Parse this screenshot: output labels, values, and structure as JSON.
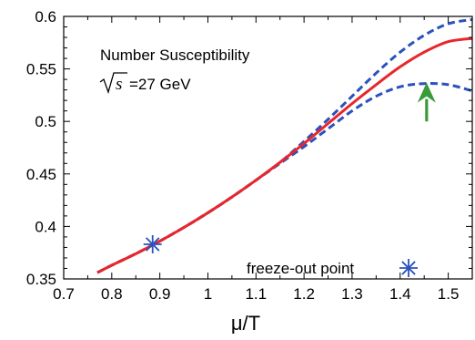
{
  "chart_data": {
    "type": "line",
    "title": "",
    "xlabel": "μ/T",
    "ylabel": "",
    "xlim": [
      0.7,
      1.55
    ],
    "ylim": [
      0.35,
      0.6
    ],
    "x_ticks": [
      0.7,
      0.8,
      0.9,
      1.0,
      1.1,
      1.2,
      1.3,
      1.4,
      1.5
    ],
    "x_tick_labels": [
      "0.7",
      "0.8",
      "0.9",
      "1",
      "1.1",
      "1.2",
      "1.3",
      "1.4",
      "1.5"
    ],
    "y_ticks": [
      0.35,
      0.4,
      0.45,
      0.5,
      0.55,
      0.6
    ],
    "y_tick_labels": [
      "0.35",
      "0.4",
      "0.45",
      "0.5",
      "0.55",
      "0.6"
    ],
    "grid": false,
    "annotations": {
      "line1": "Number Susceptibility",
      "sqrt_s": "s",
      "energy": "=27 GeV",
      "marker_label": "freeze-out point"
    },
    "colors": {
      "central": "#e8262b",
      "band": "#2a52be",
      "arrow": "#3a9a3a",
      "marker": "#2a52be"
    },
    "series": [
      {
        "style": "solid",
        "color": "#e8262b",
        "x": [
          0.77,
          0.8,
          0.85,
          0.9,
          0.95,
          1.0,
          1.05,
          1.1,
          1.15,
          1.2,
          1.25,
          1.3,
          1.35,
          1.4,
          1.45,
          1.5,
          1.55
        ],
        "y": [
          0.356,
          0.363,
          0.374,
          0.386,
          0.399,
          0.413,
          0.428,
          0.444,
          0.461,
          0.479,
          0.498,
          0.517,
          0.535,
          0.552,
          0.566,
          0.576,
          0.579
        ]
      },
      {
        "style": "dashed",
        "color": "#2a52be",
        "x": [
          0.77,
          0.8,
          0.85,
          0.9,
          0.95,
          1.0,
          1.05,
          1.1,
          1.15,
          1.2,
          1.25,
          1.3,
          1.35,
          1.4,
          1.45,
          1.5,
          1.55
        ],
        "y": [
          0.356,
          0.363,
          0.374,
          0.386,
          0.399,
          0.413,
          0.428,
          0.444,
          0.461,
          0.481,
          0.502,
          0.524,
          0.546,
          0.566,
          0.582,
          0.593,
          0.597
        ]
      },
      {
        "style": "dashed",
        "color": "#2a52be",
        "x": [
          0.77,
          0.8,
          0.85,
          0.9,
          0.95,
          1.0,
          1.05,
          1.1,
          1.15,
          1.2,
          1.25,
          1.3,
          1.35,
          1.4,
          1.45,
          1.5,
          1.55
        ],
        "y": [
          0.356,
          0.363,
          0.374,
          0.386,
          0.399,
          0.413,
          0.428,
          0.444,
          0.46,
          0.476,
          0.493,
          0.51,
          0.524,
          0.533,
          0.536,
          0.535,
          0.529
        ]
      }
    ],
    "freeze_out_point": {
      "x": 0.885,
      "y": 0.383
    },
    "arrow": {
      "x": 1.455,
      "y_from": 0.5,
      "y_to": 0.537
    }
  }
}
